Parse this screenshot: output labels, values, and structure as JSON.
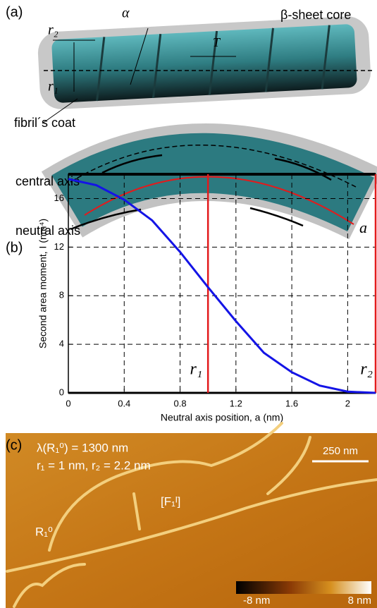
{
  "panel_a": {
    "label": "(a)",
    "r2": "r₂",
    "r1": "r₁",
    "alpha": "α",
    "core": "β-sheet core",
    "period": "T",
    "coat": "fibril´s coat",
    "central": "central axis",
    "neutral": "neutral axis",
    "a": "a"
  },
  "chart_data": {
    "type": "line",
    "panel_label": "(b)",
    "x_label": "Neutral axis position, a (nm)",
    "y_label": "Second area moment, I (nm⁴)",
    "x": [
      0,
      0.2,
      0.4,
      0.6,
      0.8,
      1.0,
      1.2,
      1.4,
      1.6,
      1.8,
      2.0,
      2.2
    ],
    "series": [
      {
        "color": "#1414e6",
        "values": [
          17.6,
          17.1,
          15.9,
          14.2,
          11.6,
          8.7,
          5.9,
          3.3,
          1.7,
          0.6,
          0.1,
          0.0
        ]
      }
    ],
    "xlim": [
      0,
      2.2
    ],
    "ylim": [
      0,
      18
    ],
    "xticks": [
      0,
      0.4,
      0.8,
      1.2,
      1.6,
      2
    ],
    "yticks": [
      0,
      4,
      8,
      12,
      16
    ],
    "grid": true,
    "markers": [
      {
        "x": 1,
        "label": "r₁",
        "color": "#e31a1c"
      },
      {
        "x": 2.2,
        "label": "r₂",
        "color": "#e31a1c"
      }
    ]
  },
  "panel_c": {
    "label": "(c)",
    "lambda": "λ(R₁⁰) = 1300 nm",
    "radii": "r₁ = 1 nm, r₂ = 2.2 nm",
    "f": "[F₁ᴵ]",
    "r": "R₁⁰",
    "scale": "250 nm",
    "cmin": "-8 nm",
    "cmax": "8 nm"
  }
}
